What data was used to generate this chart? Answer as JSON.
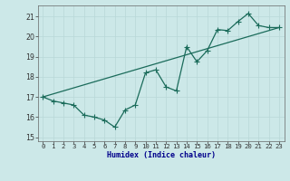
{
  "xlabel": "Humidex (Indice chaleur)",
  "bg_color": "#cce8e8",
  "line_color": "#1a6b5a",
  "grid_color": "#b8d8d8",
  "xlim": [
    -0.5,
    23.5
  ],
  "ylim": [
    14.8,
    21.55
  ],
  "xticks": [
    0,
    1,
    2,
    3,
    4,
    5,
    6,
    7,
    8,
    9,
    10,
    11,
    12,
    13,
    14,
    15,
    16,
    17,
    18,
    19,
    20,
    21,
    22,
    23
  ],
  "yticks": [
    15,
    16,
    17,
    18,
    19,
    20,
    21
  ],
  "zigzag_x": [
    0,
    1,
    2,
    3,
    4,
    5,
    6,
    7,
    8,
    9,
    10,
    11,
    12,
    13,
    14,
    15,
    16,
    17,
    18,
    19,
    20,
    21,
    22,
    23
  ],
  "zigzag_y": [
    17.0,
    16.8,
    16.7,
    16.6,
    16.1,
    16.0,
    15.85,
    15.5,
    16.35,
    16.6,
    18.2,
    18.35,
    17.5,
    17.3,
    19.5,
    18.75,
    19.3,
    20.35,
    20.3,
    20.75,
    21.15,
    20.55,
    20.45,
    20.45
  ],
  "trend_x": [
    0,
    23
  ],
  "trend_y": [
    17.0,
    20.45
  ],
  "xlabel_color": "#00008b",
  "xlabel_fontsize": 6.0,
  "tick_fontsize": 5.2,
  "marker_size": 2.2,
  "line_width": 0.9
}
